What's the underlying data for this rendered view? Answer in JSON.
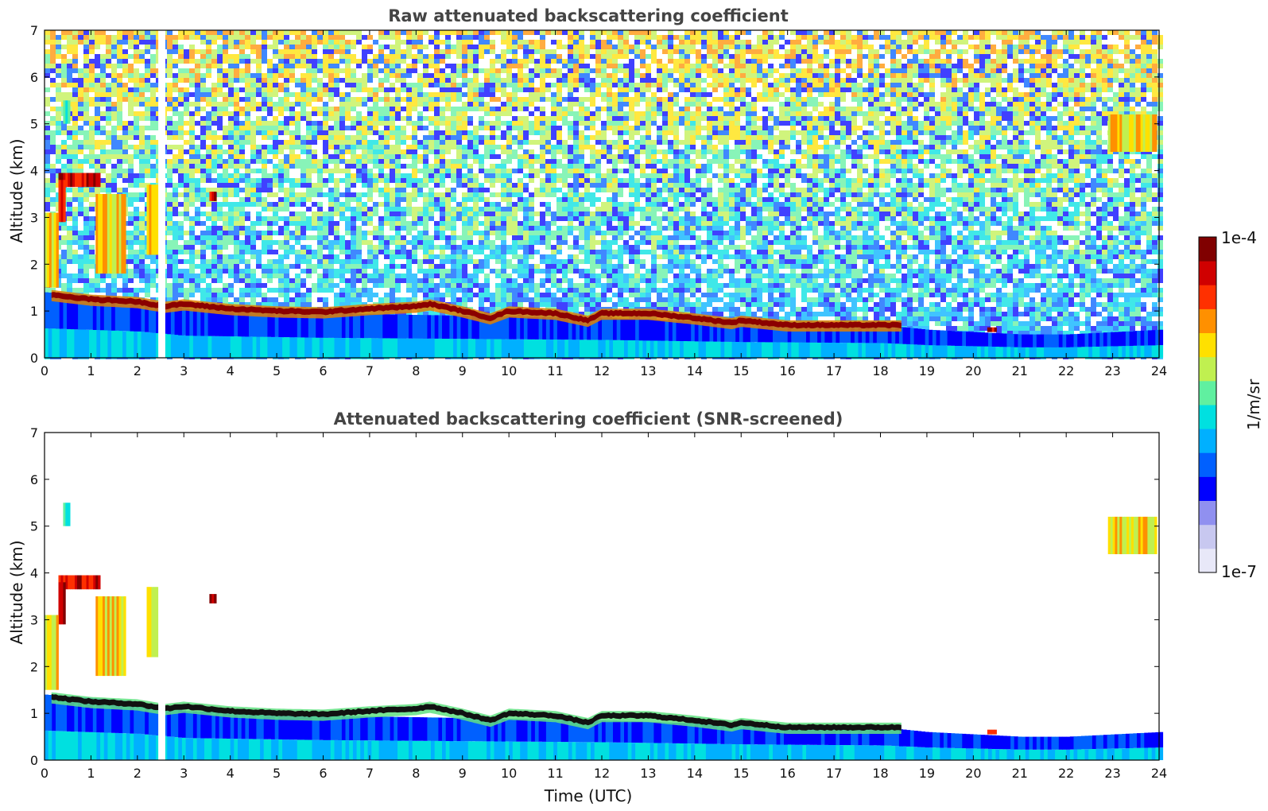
{
  "chart_data": [
    {
      "type": "heatmap",
      "title": "Raw attenuated backscattering coefficient",
      "xlabel": "",
      "ylabel": "Altitude (km)",
      "xlim": [
        0,
        24
      ],
      "ylim": [
        0,
        7
      ],
      "xticks": [
        "0",
        "1",
        "2",
        "3",
        "4",
        "5",
        "6",
        "7",
        "8",
        "9",
        "10",
        "11",
        "12",
        "13",
        "14",
        "15",
        "16",
        "17",
        "18",
        "19",
        "20",
        "21",
        "22",
        "23",
        "24"
      ],
      "yticks": [
        "0",
        "1",
        "2",
        "3",
        "4",
        "5",
        "6",
        "7"
      ],
      "noise": "heavy",
      "gap": [
        2.45,
        2.6
      ],
      "layer": {
        "x": [
          0.15,
          1,
          2,
          2.6,
          3,
          4,
          5,
          6,
          7,
          8,
          8.3,
          9,
          9.6,
          10,
          11,
          11.7,
          12,
          13,
          14,
          14.8,
          15,
          16,
          17,
          18,
          18.5
        ],
        "altitude_km": [
          1.35,
          1.25,
          1.2,
          1.1,
          1.15,
          1.05,
          1.0,
          0.98,
          1.05,
          1.1,
          1.15,
          1.0,
          0.85,
          1.0,
          0.95,
          0.8,
          0.95,
          0.95,
          0.85,
          0.75,
          0.8,
          0.7,
          0.7,
          0.7,
          0.7
        ]
      },
      "boundary_layer": {
        "x": [
          0,
          2,
          3,
          6,
          9,
          12,
          15,
          18,
          19,
          20,
          21,
          22,
          23,
          24
        ],
        "top_km": [
          1.4,
          1.25,
          1.05,
          0.95,
          0.9,
          0.85,
          0.75,
          0.7,
          0.6,
          0.55,
          0.5,
          0.5,
          0.55,
          0.6
        ]
      },
      "clouds": [
        {
          "x0": 0.3,
          "x1": 1.2,
          "alt_top_km": 3.95,
          "alt_bottom_km": 3.65,
          "strength": "high"
        },
        {
          "x0": 0.3,
          "x1": 0.4,
          "alt_top_km": 3.8,
          "alt_bottom_km": 2.9,
          "strength": "high"
        },
        {
          "x0": 1.1,
          "x1": 1.75,
          "alt_top_km": 3.5,
          "alt_bottom_km": 1.8,
          "strength": "mid"
        },
        {
          "x0": 2.2,
          "x1": 2.4,
          "alt_top_km": 3.7,
          "alt_bottom_km": 2.2,
          "strength": "mid"
        },
        {
          "x0": 0,
          "x1": 0.3,
          "alt_top_km": 3.1,
          "alt_bottom_km": 1.5,
          "strength": "mid"
        },
        {
          "x0": 0.4,
          "x1": 0.55,
          "alt_top_km": 5.5,
          "alt_bottom_km": 5.0,
          "strength": "low"
        },
        {
          "x0": 22.9,
          "x1": 23.95,
          "alt_top_km": 5.2,
          "alt_bottom_km": 4.4,
          "strength": "mid"
        },
        {
          "x0": 3.55,
          "x1": 3.65,
          "alt_top_km": 3.55,
          "alt_bottom_km": 3.35,
          "strength": "high"
        },
        {
          "x0": 20.3,
          "x1": 20.5,
          "alt_top_km": 0.65,
          "alt_bottom_km": 0.55,
          "strength": "high"
        }
      ]
    },
    {
      "type": "heatmap",
      "title": "Attenuated backscattering coefficient (SNR-screened)",
      "xlabel": "Time (UTC)",
      "ylabel": "Altitude (km)",
      "xlim": [
        0,
        24
      ],
      "ylim": [
        0,
        7
      ],
      "xticks": [
        "0",
        "1",
        "2",
        "3",
        "4",
        "5",
        "6",
        "7",
        "8",
        "9",
        "10",
        "11",
        "12",
        "13",
        "14",
        "15",
        "16",
        "17",
        "18",
        "19",
        "20",
        "21",
        "22",
        "23",
        "24"
      ],
      "yticks": [
        "0",
        "1",
        "2",
        "3",
        "4",
        "5",
        "6",
        "7"
      ],
      "noise": "screened",
      "gap": [
        2.45,
        2.6
      ],
      "layer": {
        "x": [
          0.15,
          1,
          2,
          2.6,
          3,
          4,
          5,
          6,
          7,
          8,
          8.3,
          9,
          9.6,
          10,
          11,
          11.7,
          12,
          13,
          14,
          14.8,
          15,
          16,
          17,
          18,
          18.5
        ],
        "altitude_km": [
          1.35,
          1.25,
          1.2,
          1.1,
          1.15,
          1.05,
          1.0,
          0.98,
          1.05,
          1.1,
          1.15,
          1.0,
          0.85,
          1.0,
          0.95,
          0.8,
          0.95,
          0.95,
          0.85,
          0.75,
          0.8,
          0.7,
          0.7,
          0.7,
          0.7
        ]
      },
      "boundary_layer": {
        "x": [
          0,
          2,
          3,
          6,
          9,
          12,
          15,
          18,
          19,
          20,
          21,
          22,
          23,
          24
        ],
        "top_km": [
          1.4,
          1.25,
          1.05,
          0.95,
          0.9,
          0.85,
          0.75,
          0.7,
          0.6,
          0.55,
          0.5,
          0.5,
          0.55,
          0.6
        ]
      },
      "clouds": [
        {
          "x0": 0.3,
          "x1": 1.2,
          "alt_top_km": 3.95,
          "alt_bottom_km": 3.65,
          "strength": "high"
        },
        {
          "x0": 0.3,
          "x1": 0.4,
          "alt_top_km": 3.8,
          "alt_bottom_km": 2.9,
          "strength": "high"
        },
        {
          "x0": 1.1,
          "x1": 1.75,
          "alt_top_km": 3.5,
          "alt_bottom_km": 1.8,
          "strength": "mid"
        },
        {
          "x0": 2.2,
          "x1": 2.4,
          "alt_top_km": 3.7,
          "alt_bottom_km": 2.2,
          "strength": "mid"
        },
        {
          "x0": 0,
          "x1": 0.3,
          "alt_top_km": 3.1,
          "alt_bottom_km": 1.5,
          "strength": "mid"
        },
        {
          "x0": 0.4,
          "x1": 0.55,
          "alt_top_km": 5.5,
          "alt_bottom_km": 5.0,
          "strength": "low"
        },
        {
          "x0": 22.9,
          "x1": 23.95,
          "alt_top_km": 5.2,
          "alt_bottom_km": 4.4,
          "strength": "mid"
        },
        {
          "x0": 3.55,
          "x1": 3.65,
          "alt_top_km": 3.55,
          "alt_bottom_km": 3.35,
          "strength": "high"
        },
        {
          "x0": 20.3,
          "x1": 20.5,
          "alt_top_km": 0.65,
          "alt_bottom_km": 0.55,
          "strength": "high"
        }
      ]
    }
  ],
  "colorbar": {
    "label": "1/m/sr",
    "max_label": "1e-4",
    "min_label": "1e-7",
    "scale": "log",
    "colors": [
      "#e8e8f8",
      "#c8c8f0",
      "#9090f0",
      "#0000ff",
      "#0060ff",
      "#00b0ff",
      "#00e0e0",
      "#60f0a0",
      "#c0f050",
      "#ffe000",
      "#ff9000",
      "#ff3000",
      "#d00000",
      "#800000"
    ]
  }
}
